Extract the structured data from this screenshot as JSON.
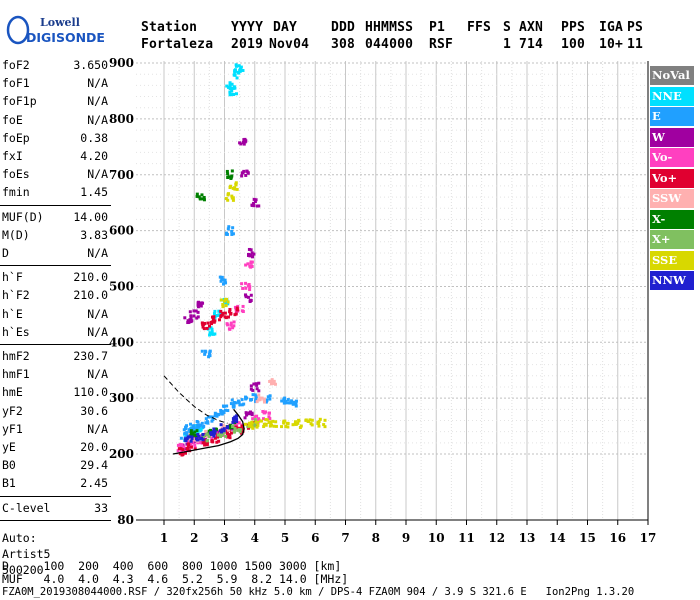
{
  "logo": {
    "line1": "Lowell",
    "line2": "DIGISONDE"
  },
  "header": {
    "labels": [
      "Station",
      "YYYY",
      "DAY",
      "DDD",
      "HHMMSS",
      "P1",
      "FFS",
      "S",
      "AXN",
      "PPS",
      "IGA",
      "PS"
    ],
    "values": [
      "Fortaleza",
      "2019",
      "Nov04",
      "308",
      "044000",
      "RSF",
      "",
      "1",
      "714",
      "100",
      "10+",
      "11"
    ]
  },
  "params": {
    "group1": [
      {
        "label": "foF2",
        "value": "3.650"
      },
      {
        "label": "foF1",
        "value": "N/A"
      },
      {
        "label": "foF1p",
        "value": "N/A"
      },
      {
        "label": "foE",
        "value": "N/A"
      },
      {
        "label": "foEp",
        "value": "0.38"
      },
      {
        "label": "fxI",
        "value": "4.20"
      },
      {
        "label": "foEs",
        "value": "N/A"
      },
      {
        "label": "fmin",
        "value": "1.45"
      }
    ],
    "group2": [
      {
        "label": "MUF(D)",
        "value": "14.00"
      },
      {
        "label": "M(D)",
        "value": "3.83"
      },
      {
        "label": "D",
        "value": "N/A"
      }
    ],
    "group3": [
      {
        "label": "h`F",
        "value": "210.0"
      },
      {
        "label": "h`F2",
        "value": "210.0"
      },
      {
        "label": "h`E",
        "value": "N/A"
      },
      {
        "label": "h`Es",
        "value": "N/A"
      }
    ],
    "group4": [
      {
        "label": "hmF2",
        "value": "230.7"
      },
      {
        "label": "hmF1",
        "value": "N/A"
      },
      {
        "label": "hmE",
        "value": "110.0"
      },
      {
        "label": "yF2",
        "value": "30.6"
      },
      {
        "label": "yF1",
        "value": "N/A"
      },
      {
        "label": "yE",
        "value": "20.0"
      },
      {
        "label": "B0",
        "value": "29.4"
      },
      {
        "label": "B1",
        "value": "2.45"
      }
    ],
    "group5": [
      {
        "label": "C-level",
        "value": "33"
      }
    ],
    "auto": [
      "Auto:",
      "Artist5",
      "500200"
    ]
  },
  "legend": [
    {
      "label": "NoVal",
      "bg": "#808080",
      "fg": "#ffffff"
    },
    {
      "label": "NNE",
      "bg": "#00e0ff",
      "fg": "#ffffff"
    },
    {
      "label": "E",
      "bg": "#20a0ff",
      "fg": "#ffffff"
    },
    {
      "label": "W",
      "bg": "#a000a0",
      "fg": "#ffffff"
    },
    {
      "label": "Vo-",
      "bg": "#ff40c0",
      "fg": "#ffffff"
    },
    {
      "label": "Vo+",
      "bg": "#e00030",
      "fg": "#ffffff"
    },
    {
      "label": "SSW",
      "bg": "#ffb0b0",
      "fg": "#ffffff"
    },
    {
      "label": "X-",
      "bg": "#008000",
      "fg": "#ffffff"
    },
    {
      "label": "X+",
      "bg": "#80c060",
      "fg": "#ffffff"
    },
    {
      "label": "SSE",
      "bg": "#d8d800",
      "fg": "#ffffff"
    },
    {
      "label": "NNW",
      "bg": "#2020d0",
      "fg": "#ffffff"
    }
  ],
  "footer": {
    "d_line": "D     100  200  400  600  800 1000 1500 3000 [km]",
    "muf_line": "MUF   4.0  4.0  4.3  4.6  5.2  5.9  8.2 14.0 [MHz]",
    "info_line": "FZA0M_2019308044000.RSF / 320fx256h 50 kHz 5.0 km / DPS-4 FZA0M 904 / 3.9 S 321.6 E   Ion2Png 1.3.20"
  },
  "chart_data": {
    "type": "scatter",
    "x_ticks": [
      1,
      2,
      3,
      4,
      5,
      6,
      7,
      8,
      9,
      10,
      11,
      12,
      13,
      14,
      15,
      16,
      17
    ],
    "y_ticks": [
      80,
      200,
      300,
      400,
      500,
      600,
      700,
      800,
      900
    ],
    "xlim": [
      1,
      17
    ],
    "ylim_labels": [
      80,
      900
    ],
    "y_scale_note": "nonlinear: 80 at bottom, 200-900 evenly spaced",
    "grid": true,
    "series": [
      {
        "name": "NNE",
        "color": "#00e0ff",
        "points": [
          [
            1.8,
            230
          ],
          [
            2.0,
            240
          ],
          [
            2.2,
            245
          ],
          [
            3.2,
            860
          ],
          [
            3.4,
            880
          ],
          [
            3.5,
            890
          ],
          [
            3.3,
            850
          ],
          [
            2.6,
            420
          ],
          [
            2.8,
            450
          ],
          [
            3.0,
            470
          ]
        ]
      },
      {
        "name": "E",
        "color": "#20a0ff",
        "points": [
          [
            1.7,
            230
          ],
          [
            1.8,
            245
          ],
          [
            2.0,
            250
          ],
          [
            2.2,
            255
          ],
          [
            2.5,
            260
          ],
          [
            2.8,
            270
          ],
          [
            3.0,
            280
          ],
          [
            3.3,
            290
          ],
          [
            3.6,
            295
          ],
          [
            4.0,
            300
          ],
          [
            4.5,
            298
          ],
          [
            5.0,
            295
          ],
          [
            5.3,
            292
          ],
          [
            2.4,
            380
          ],
          [
            3.0,
            510
          ],
          [
            3.2,
            600
          ]
        ]
      },
      {
        "name": "W",
        "color": "#a000a0",
        "points": [
          [
            1.7,
            215
          ],
          [
            2.0,
            225
          ],
          [
            2.3,
            230
          ],
          [
            2.8,
            240
          ],
          [
            3.3,
            250
          ],
          [
            3.8,
            270
          ],
          [
            4.0,
            320
          ],
          [
            3.8,
            480
          ],
          [
            3.9,
            560
          ],
          [
            4.0,
            650
          ],
          [
            3.7,
            700
          ],
          [
            3.6,
            760
          ],
          [
            1.8,
            440
          ],
          [
            2.0,
            450
          ],
          [
            2.2,
            470
          ]
        ]
      },
      {
        "name": "Vo-",
        "color": "#ff40c0",
        "points": [
          [
            1.6,
            210
          ],
          [
            1.9,
            218
          ],
          [
            2.2,
            225
          ],
          [
            2.6,
            232
          ],
          [
            3.0,
            240
          ],
          [
            3.5,
            250
          ],
          [
            4.0,
            262
          ],
          [
            4.4,
            270
          ],
          [
            3.2,
            430
          ],
          [
            3.5,
            460
          ],
          [
            3.7,
            500
          ],
          [
            3.8,
            540
          ]
        ]
      },
      {
        "name": "Vo+",
        "color": "#e00030",
        "points": [
          [
            1.6,
            205
          ],
          [
            1.9,
            212
          ],
          [
            2.3,
            220
          ],
          [
            2.7,
            228
          ],
          [
            3.1,
            236
          ],
          [
            3.5,
            244
          ],
          [
            3.9,
            250
          ],
          [
            2.4,
            430
          ],
          [
            2.7,
            440
          ],
          [
            3.0,
            450
          ],
          [
            3.3,
            455
          ]
        ]
      },
      {
        "name": "SSW",
        "color": "#ffb0b0",
        "points": [
          [
            2.0,
            230
          ],
          [
            2.5,
            238
          ],
          [
            3.0,
            245
          ],
          [
            4.2,
            300
          ],
          [
            4.6,
            330
          ]
        ]
      },
      {
        "name": "X-",
        "color": "#008000",
        "points": [
          [
            2.0,
            235
          ],
          [
            2.6,
            242
          ],
          [
            3.2,
            250
          ],
          [
            2.2,
            660
          ],
          [
            3.2,
            700
          ]
        ]
      },
      {
        "name": "X+",
        "color": "#80c060",
        "points": [
          [
            2.4,
            230
          ],
          [
            2.9,
            238
          ],
          [
            3.4,
            246
          ],
          [
            3.9,
            255
          ]
        ]
      },
      {
        "name": "SSE",
        "color": "#d8d800",
        "points": [
          [
            3.8,
            250
          ],
          [
            4.0,
            253
          ],
          [
            4.3,
            255
          ],
          [
            4.6,
            256
          ],
          [
            5.0,
            255
          ],
          [
            5.4,
            254
          ],
          [
            5.8,
            255
          ],
          [
            6.2,
            256
          ],
          [
            3.0,
            470
          ],
          [
            3.2,
            660
          ],
          [
            3.3,
            680
          ]
        ]
      },
      {
        "name": "NNW",
        "color": "#2020d0",
        "points": [
          [
            1.8,
            225
          ],
          [
            2.2,
            232
          ],
          [
            2.6,
            238
          ],
          [
            3.0,
            246
          ],
          [
            3.4,
            262
          ]
        ]
      }
    ],
    "profile_curve": [
      [
        1.3,
        200
      ],
      [
        1.8,
        205
      ],
      [
        2.3,
        210
      ],
      [
        2.8,
        215
      ],
      [
        3.2,
        222
      ],
      [
        3.45,
        228
      ],
      [
        3.6,
        235
      ],
      [
        3.65,
        245
      ],
      [
        3.6,
        258
      ],
      [
        3.45,
        270
      ],
      [
        3.3,
        280
      ]
    ],
    "dashed_curve": [
      [
        1.0,
        340
      ],
      [
        1.5,
        310
      ],
      [
        2.0,
        285
      ],
      [
        2.4,
        270
      ],
      [
        2.8,
        260
      ],
      [
        3.1,
        255
      ]
    ]
  }
}
